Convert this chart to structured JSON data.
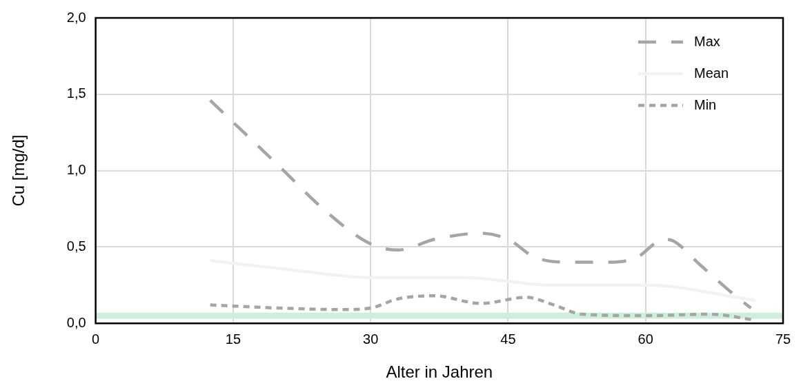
{
  "chart_data": {
    "type": "line",
    "xlabel": "Alter in Jahren",
    "ylabel": "Cu [mg/d]",
    "xlim": [
      0,
      75
    ],
    "xticks": [
      0,
      15,
      30,
      45,
      60,
      75
    ],
    "ylim": [
      0,
      2
    ],
    "yticks": [
      {
        "value": 0,
        "label": "0,0"
      },
      {
        "value": 0.5,
        "label": "0,5"
      },
      {
        "value": 1,
        "label": "1,0"
      },
      {
        "value": 1.5,
        "label": "1,5"
      },
      {
        "value": 2,
        "label": "2,0"
      }
    ],
    "grid": true,
    "legend": "top right",
    "marker": "none",
    "bands": [
      {
        "axis": "y",
        "from": 0.03,
        "to": 0.07,
        "color": "#cdeedd"
      }
    ],
    "series": [
      {
        "name": "Max",
        "color": "#a5a5a5",
        "line_style": "dashed",
        "x": [
          12.5,
          20,
          25,
          30,
          33,
          37,
          42,
          45,
          48,
          52,
          56,
          59,
          62,
          63,
          66,
          70,
          71.5
        ],
        "values": [
          1.46,
          1.03,
          0.74,
          0.52,
          0.48,
          0.55,
          0.59,
          0.55,
          0.43,
          0.4,
          0.4,
          0.43,
          0.55,
          0.54,
          0.38,
          0.17,
          0.1
        ]
      },
      {
        "name": "Mean",
        "color": "#f2f2f2",
        "line_style": "solid",
        "x": [
          12.5,
          20,
          30,
          40,
          50,
          60,
          72
        ],
        "values": [
          0.41,
          0.36,
          0.3,
          0.3,
          0.25,
          0.25,
          0.15
        ]
      },
      {
        "name": "Min",
        "color": "#a5a5a5",
        "line_style": "dotted",
        "x": [
          12.5,
          20,
          27,
          30,
          33,
          37,
          42,
          47,
          50,
          53,
          60,
          67,
          72
        ],
        "values": [
          0.12,
          0.1,
          0.09,
          0.1,
          0.16,
          0.18,
          0.13,
          0.17,
          0.12,
          0.06,
          0.05,
          0.06,
          0.02
        ]
      }
    ]
  }
}
